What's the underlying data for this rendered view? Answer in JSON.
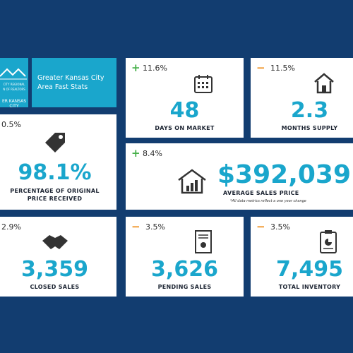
{
  "logo": {
    "line1": "CITY REGIONAL",
    "line2": "N OF REALTORS",
    "line3": "ER KANSAS CITY"
  },
  "header": {
    "title": "Greater Kansas City Area Fast Stats"
  },
  "cards": [
    {
      "change": "11.6%",
      "value": "48",
      "label": "DAYS ON MARKET"
    },
    {
      "change": "11.5%",
      "value": "2.3",
      "label": "MONTHS SUPPLY"
    },
    {
      "change": "0.5%",
      "value": "98.1%",
      "label": "PERCENTAGE OF ORIGINAL PRICE RECEIVED"
    },
    {
      "change": "8.4%",
      "value": "$392,039",
      "label": "AVERAGE SALES PRICE"
    },
    {
      "change": "2.9%",
      "value": "3,359",
      "label": "CLOSED SALES"
    },
    {
      "change": "3.5%",
      "value": "3,626",
      "label": "PENDING SALES"
    },
    {
      "change": "3.5%",
      "value": "7,495",
      "label": "TOTAL INVENTORY"
    }
  ],
  "footnote": "*All data metrics reflect a one year change"
}
